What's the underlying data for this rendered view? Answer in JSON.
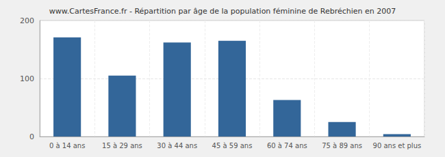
{
  "chart_data": {
    "type": "bar",
    "title": "www.CartesFrance.fr - Répartition par âge de la population féminine de Rebréchien en 2007",
    "categories": [
      "0 à 14 ans",
      "15 à 29 ans",
      "30 à 44 ans",
      "45 à 59 ans",
      "60 à 74 ans",
      "75 à 89 ans",
      "90 ans et plus"
    ],
    "values": [
      171,
      105,
      162,
      165,
      63,
      25,
      4
    ],
    "color": "#336699",
    "ylim": [
      0,
      200
    ],
    "yticks": [
      0,
      100,
      200
    ],
    "grid": true
  }
}
